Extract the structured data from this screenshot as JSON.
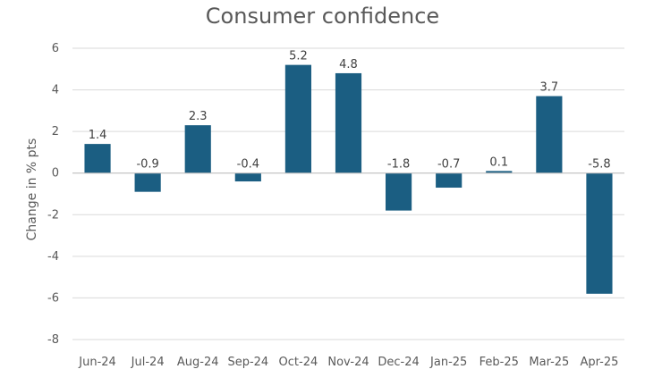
{
  "chart_data": {
    "type": "bar",
    "title": "Consumer confidence",
    "xlabel": "",
    "ylabel": "Change in % pts",
    "categories": [
      "Jun-24",
      "Jul-24",
      "Aug-24",
      "Sep-24",
      "Oct-24",
      "Nov-24",
      "Dec-24",
      "Jan-25",
      "Feb-25",
      "Mar-25",
      "Apr-25"
    ],
    "values": [
      1.4,
      -0.9,
      2.3,
      -0.4,
      5.2,
      4.8,
      -1.8,
      -0.7,
      0.1,
      3.7,
      -5.8
    ],
    "data_labels": [
      "1.4",
      "-0.9",
      "2.3",
      "-0.4",
      "5.2",
      "4.8",
      "-1.8",
      "-0.7",
      "0.1",
      "3.7",
      "-5.8"
    ],
    "ylim": [
      -8,
      6
    ],
    "yticks": [
      6,
      4,
      2,
      0,
      -2,
      -4,
      -6,
      -8
    ],
    "ytick_labels": [
      "6",
      "4",
      "2",
      "0",
      "-2",
      "-4",
      "-6",
      "-8"
    ],
    "grid": true,
    "legend": "none",
    "bar_color": "#1b5e82",
    "grid_color": "#d9d9d9"
  }
}
